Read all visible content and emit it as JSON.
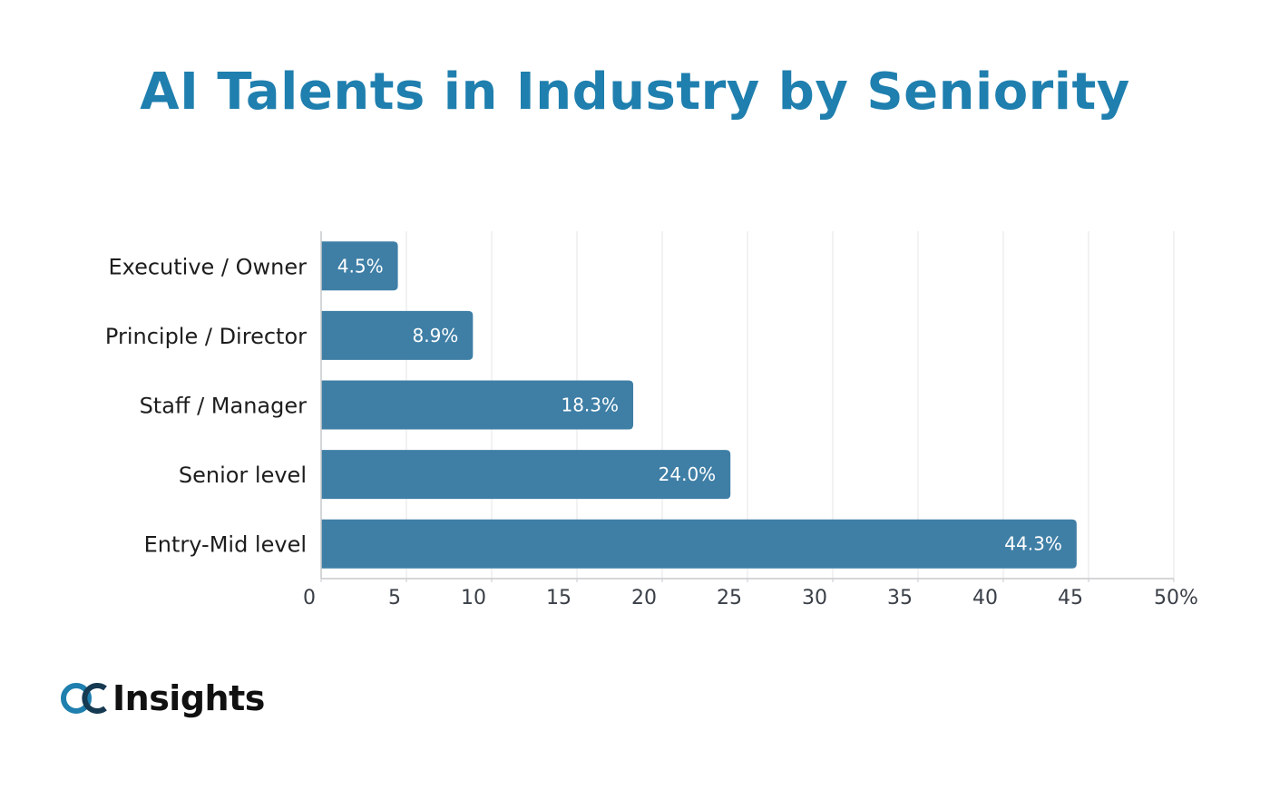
{
  "header": {
    "title": "AI Talents in Industry by Seniority"
  },
  "logo": {
    "wordmark": "Insights",
    "icon": "oc-logo-icon",
    "colors": {
      "o": "#1f7fae",
      "c": "#163a52"
    }
  },
  "colors": {
    "title": "#1f7fae",
    "bar": "#3f7fa6",
    "grid": "#e6e6e6",
    "axis": "#c7c9cc"
  },
  "chart_data": {
    "type": "bar",
    "orientation": "horizontal",
    "categories": [
      "Executive / Owner",
      "Principle / Director",
      "Staff / Manager",
      "Senior level",
      "Entry-Mid level"
    ],
    "values": [
      4.5,
      8.9,
      18.3,
      24.0,
      44.3
    ],
    "data_labels": [
      "4.5%",
      "8.9%",
      "18.3%",
      "24.0%",
      "44.3%"
    ],
    "xlim": [
      0,
      50
    ],
    "x_ticks": [
      0,
      5,
      10,
      15,
      20,
      25,
      30,
      35,
      40,
      45,
      50
    ],
    "x_tick_labels": [
      "0",
      "5",
      "10",
      "15",
      "20",
      "25",
      "30",
      "35",
      "40",
      "45",
      "50%"
    ],
    "grid": true,
    "legend": false
  }
}
